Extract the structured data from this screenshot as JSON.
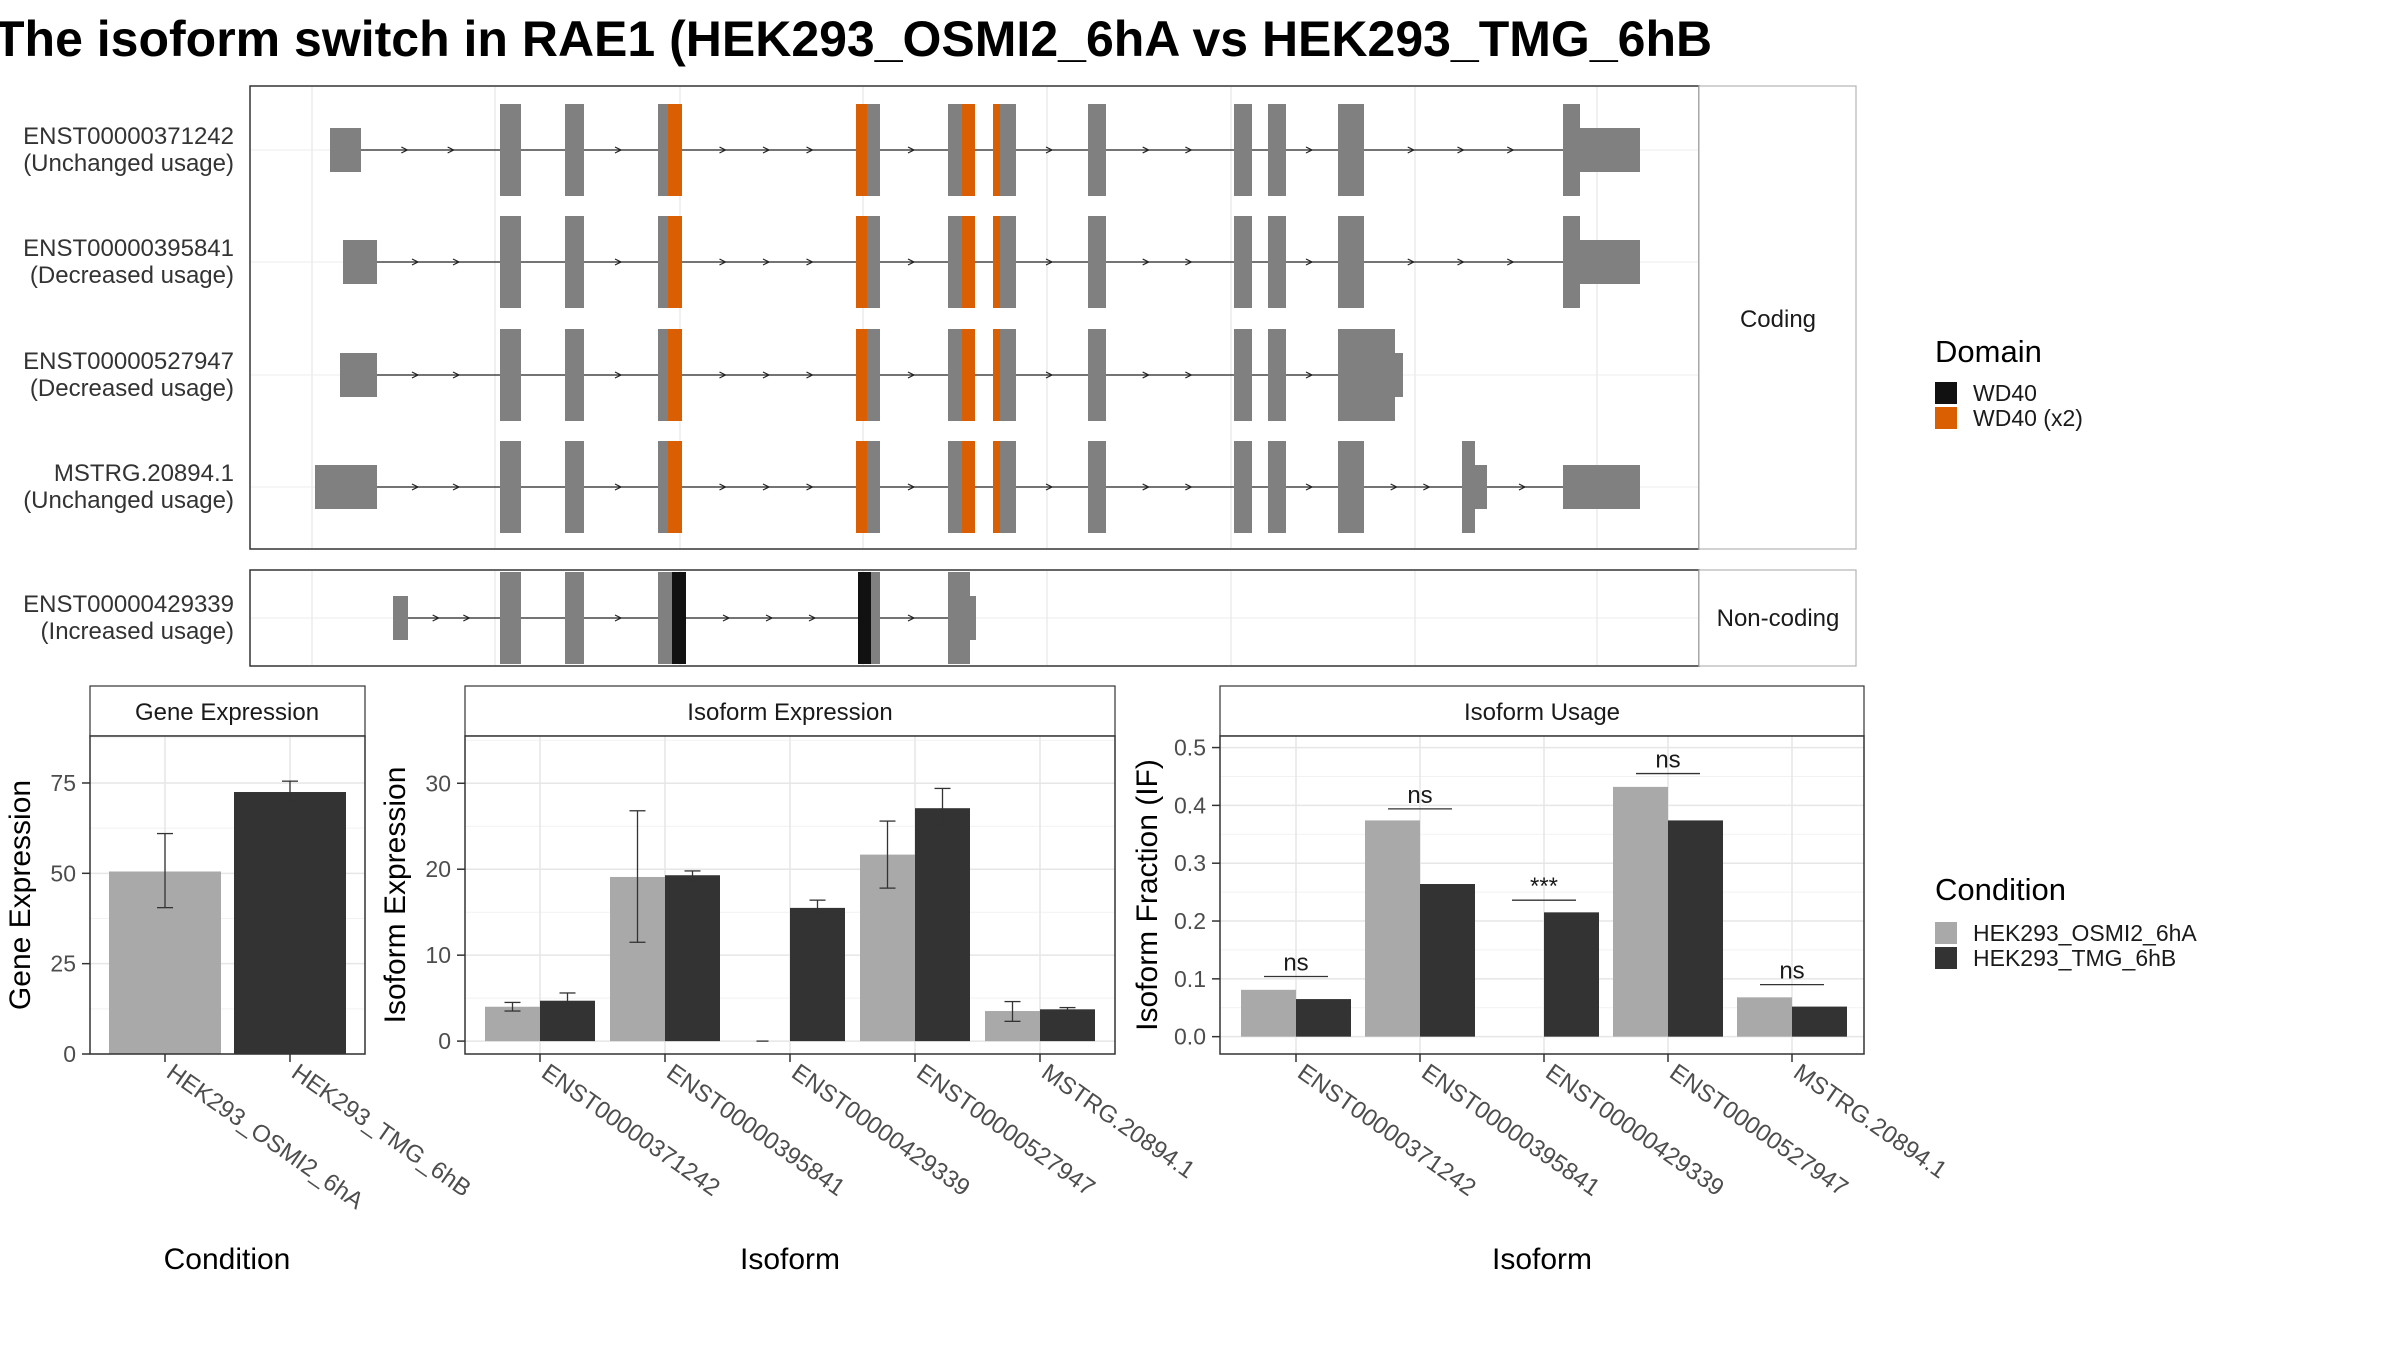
{
  "title": "The isoform switch in RAE1 (HEK293_OSMI2_6hA vs HEK293_TMG_6hB",
  "colors": {
    "exon": "#808080",
    "wd40": "#111111",
    "wd40_x2": "#d95f02",
    "cond_a": "#a9a9a9",
    "cond_b": "#333333"
  },
  "structure": {
    "facets": [
      "Coding",
      "Non-coding"
    ],
    "isoforms": [
      {
        "id": "ENST00000371242",
        "usage": "(Unchanged usage)",
        "facet": "Coding"
      },
      {
        "id": "ENST00000395841",
        "usage": "(Decreased usage)",
        "facet": "Coding"
      },
      {
        "id": "ENST00000527947",
        "usage": "(Decreased usage)",
        "facet": "Coding"
      },
      {
        "id": "MSTRG.20894.1",
        "usage": "(Unchanged usage)",
        "facet": "Coding"
      },
      {
        "id": "ENST00000429339",
        "usage": "(Increased usage)",
        "facet": "Non-coding"
      }
    ]
  },
  "legend_domain": {
    "title": "Domain",
    "items": [
      {
        "label": "WD40",
        "color": "#111111"
      },
      {
        "label": "WD40 (x2)",
        "color": "#d95f02"
      }
    ]
  },
  "legend_condition": {
    "title": "Condition",
    "items": [
      {
        "label": "HEK293_OSMI2_6hA",
        "color": "#a9a9a9"
      },
      {
        "label": "HEK293_TMG_6hB",
        "color": "#333333"
      }
    ]
  },
  "chart_data": [
    {
      "type": "bar",
      "title": "Gene Expression",
      "xlabel": "Condition",
      "ylabel": "Gene Expression",
      "categories": [
        "HEK293_OSMI2_6hA",
        "HEK293_TMG_6hB"
      ],
      "values": [
        50.5,
        72.5
      ],
      "errors": [
        [
          40.5,
          61.0
        ],
        [
          69.5,
          75.5
        ]
      ],
      "colors": [
        "#a9a9a9",
        "#333333"
      ],
      "ylim": [
        0,
        88
      ],
      "yticks": [
        0,
        25,
        50,
        75
      ]
    },
    {
      "type": "bar",
      "title": "Isoform Expression",
      "xlabel": "Isoform",
      "ylabel": "Isoform Expression",
      "categories": [
        "ENST00000371242",
        "ENST00000395841",
        "ENST00000429339",
        "ENST00000527947",
        "MSTRG.20894.1"
      ],
      "series": [
        {
          "name": "HEK293_OSMI2_6hA",
          "values": [
            4.0,
            19.1,
            0.0,
            21.7,
            3.5
          ],
          "errors": [
            [
              3.5,
              4.5
            ],
            [
              11.5,
              26.8
            ],
            [
              0.0,
              0.0
            ],
            [
              17.8,
              25.6
            ],
            [
              2.3,
              4.6
            ]
          ]
        },
        {
          "name": "HEK293_TMG_6hB",
          "values": [
            4.7,
            19.3,
            15.5,
            27.1,
            3.7
          ],
          "errors": [
            [
              3.8,
              5.6
            ],
            [
              18.8,
              19.8
            ],
            [
              14.6,
              16.4
            ],
            [
              25.0,
              29.4
            ],
            [
              3.5,
              3.9
            ]
          ]
        }
      ],
      "ylim": [
        -1.5,
        35.5
      ],
      "yticks": [
        0,
        10,
        20,
        30
      ]
    },
    {
      "type": "bar",
      "title": "Isoform Usage",
      "xlabel": "Isoform",
      "ylabel": "Isoform Fraction (IF)",
      "categories": [
        "ENST00000371242",
        "ENST00000395841",
        "ENST00000429339",
        "ENST00000527947",
        "MSTRG.20894.1"
      ],
      "series": [
        {
          "name": "HEK293_OSMI2_6hA",
          "values": [
            0.081,
            0.374,
            0.0,
            0.432,
            0.068
          ]
        },
        {
          "name": "HEK293_TMG_6hB",
          "values": [
            0.065,
            0.264,
            0.215,
            0.374,
            0.052
          ]
        }
      ],
      "significance": [
        {
          "category": "ENST00000371242",
          "label": "ns",
          "y": 0.104
        },
        {
          "category": "ENST00000395841",
          "label": "ns",
          "y": 0.394
        },
        {
          "category": "ENST00000429339",
          "label": "***",
          "y": 0.236
        },
        {
          "category": "ENST00000527947",
          "label": "ns",
          "y": 0.455
        },
        {
          "category": "MSTRG.20894.1",
          "label": "ns",
          "y": 0.09
        }
      ],
      "ylim": [
        -0.03,
        0.52
      ],
      "yticks": [
        0.0,
        0.1,
        0.2,
        0.3,
        0.4,
        0.5
      ]
    }
  ]
}
